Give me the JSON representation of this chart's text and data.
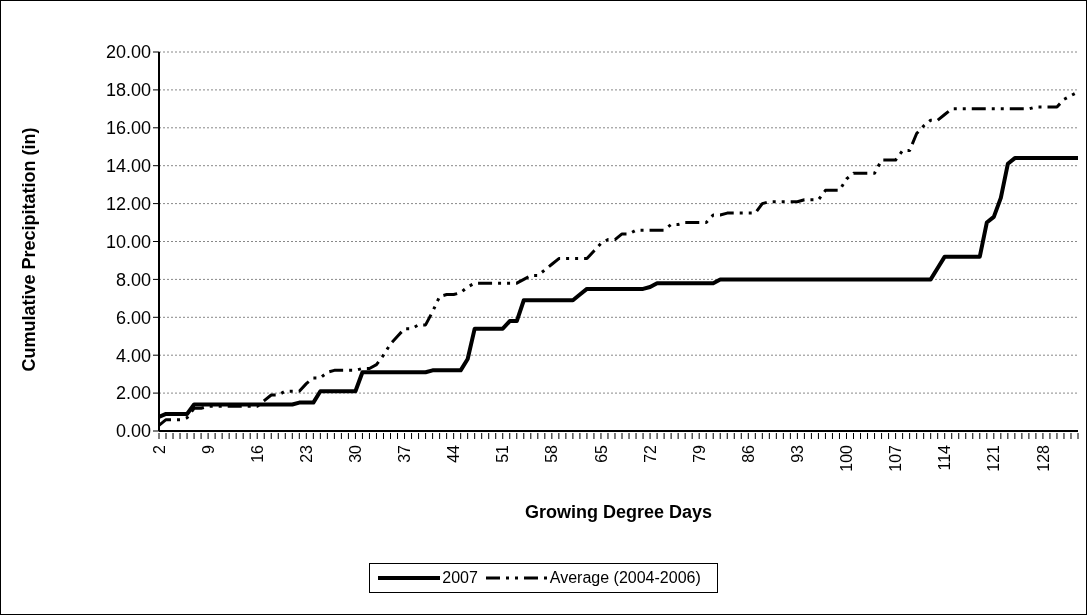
{
  "chart_data": {
    "type": "line",
    "xlabel": "Growing Degree Days",
    "ylabel": "Cumulative Precipitation (in)",
    "categories": [
      "2",
      null,
      null,
      null,
      null,
      null,
      null,
      "9",
      null,
      null,
      null,
      null,
      null,
      null,
      "16",
      null,
      null,
      null,
      null,
      null,
      null,
      "23",
      null,
      null,
      null,
      null,
      null,
      null,
      "30",
      null,
      null,
      null,
      null,
      null,
      null,
      "37",
      null,
      null,
      null,
      null,
      null,
      null,
      "44",
      null,
      null,
      null,
      null,
      null,
      null,
      "51",
      null,
      null,
      null,
      null,
      null,
      null,
      "58",
      null,
      null,
      null,
      null,
      null,
      null,
      "65",
      null,
      null,
      null,
      null,
      null,
      null,
      "72",
      null,
      null,
      null,
      null,
      null,
      null,
      "79",
      null,
      null,
      null,
      null,
      null,
      null,
      "86",
      null,
      null,
      null,
      null,
      null,
      null,
      "93",
      null,
      null,
      null,
      null,
      null,
      null,
      "100",
      null,
      null,
      null,
      null,
      null,
      null,
      "107",
      null,
      null,
      null,
      null,
      null,
      null,
      "114",
      null,
      null,
      null,
      null,
      null,
      null,
      "121",
      null,
      null,
      null,
      null,
      null,
      null,
      "128",
      null,
      null,
      null,
      null,
      null
    ],
    "series": [
      {
        "name": "2007",
        "color": "#000000",
        "line_style": "solid",
        "values": [
          0.75,
          0.9,
          0.9,
          0.9,
          0.9,
          1.4,
          1.4,
          1.4,
          1.4,
          1.4,
          1.4,
          1.4,
          1.4,
          1.4,
          1.4,
          1.4,
          1.4,
          1.4,
          1.4,
          1.4,
          1.5,
          1.5,
          1.5,
          2.1,
          2.1,
          2.1,
          2.1,
          2.1,
          2.1,
          3.1,
          3.1,
          3.1,
          3.1,
          3.1,
          3.1,
          3.1,
          3.1,
          3.1,
          3.1,
          3.2,
          3.2,
          3.2,
          3.2,
          3.2,
          3.8,
          5.4,
          5.4,
          5.4,
          5.4,
          5.4,
          5.8,
          5.8,
          6.9,
          6.9,
          6.9,
          6.9,
          6.9,
          6.9,
          6.9,
          6.9,
          7.2,
          7.5,
          7.5,
          7.5,
          7.5,
          7.5,
          7.5,
          7.5,
          7.5,
          7.5,
          7.6,
          7.8,
          7.8,
          7.8,
          7.8,
          7.8,
          7.8,
          7.8,
          7.8,
          7.8,
          8.0,
          8.0,
          8.0,
          8.0,
          8.0,
          8.0,
          8.0,
          8.0,
          8.0,
          8.0,
          8.0,
          8.0,
          8.0,
          8.0,
          8.0,
          8.0,
          8.0,
          8.0,
          8.0,
          8.0,
          8.0,
          8.0,
          8.0,
          8.0,
          8.0,
          8.0,
          8.0,
          8.0,
          8.0,
          8.0,
          8.0,
          8.6,
          9.2,
          9.2,
          9.2,
          9.2,
          9.2,
          9.2,
          11.0,
          11.3,
          12.3,
          14.1,
          14.4,
          14.4,
          14.4,
          14.4,
          14.4,
          14.4,
          14.4,
          14.4,
          14.4,
          14.4
        ]
      },
      {
        "name": "Average (2004-2006)",
        "color": "#000000",
        "line_style": "dashed",
        "values": [
          0.3,
          0.6,
          0.6,
          0.6,
          0.7,
          1.2,
          1.2,
          1.3,
          1.3,
          1.3,
          1.3,
          1.3,
          1.3,
          1.3,
          1.3,
          1.6,
          1.9,
          1.9,
          2.1,
          2.1,
          2.1,
          2.5,
          2.8,
          2.8,
          3.1,
          3.2,
          3.2,
          3.2,
          3.2,
          3.3,
          3.3,
          3.5,
          4.0,
          4.6,
          5.0,
          5.4,
          5.4,
          5.6,
          5.6,
          6.3,
          7.1,
          7.2,
          7.2,
          7.3,
          7.6,
          7.8,
          7.8,
          7.8,
          7.8,
          7.8,
          7.8,
          7.8,
          8.0,
          8.2,
          8.2,
          8.5,
          8.8,
          9.1,
          9.1,
          9.1,
          9.1,
          9.1,
          9.5,
          9.9,
          10.1,
          10.1,
          10.4,
          10.4,
          10.6,
          10.6,
          10.6,
          10.6,
          10.6,
          10.9,
          10.9,
          11.0,
          11.0,
          11.0,
          11.0,
          11.4,
          11.4,
          11.5,
          11.5,
          11.5,
          11.5,
          11.5,
          12.0,
          12.1,
          12.1,
          12.1,
          12.1,
          12.1,
          12.2,
          12.2,
          12.2,
          12.7,
          12.7,
          12.7,
          13.3,
          13.6,
          13.6,
          13.6,
          13.6,
          14.3,
          14.3,
          14.3,
          14.8,
          14.8,
          15.7,
          16.1,
          16.4,
          16.4,
          16.7,
          17.0,
          17.0,
          17.0,
          17.0,
          17.0,
          17.0,
          17.0,
          17.0,
          17.0,
          17.0,
          17.0,
          17.0,
          17.1,
          17.1,
          17.1,
          17.1,
          17.5,
          17.7,
          17.9
        ]
      }
    ],
    "ylim": [
      0,
      20
    ],
    "yticks": [
      {
        "value": 0,
        "label": "0.00"
      },
      {
        "value": 2,
        "label": "2.00"
      },
      {
        "value": 4,
        "label": "4.00"
      },
      {
        "value": 6,
        "label": "6.00"
      },
      {
        "value": 8,
        "label": "8.00"
      },
      {
        "value": 10,
        "label": "10.00"
      },
      {
        "value": 12,
        "label": "12.00"
      },
      {
        "value": 14,
        "label": "14.00"
      },
      {
        "value": 16,
        "label": "16.00"
      },
      {
        "value": 18,
        "label": "18.00"
      },
      {
        "value": 20,
        "label": "20.00"
      }
    ],
    "grid": "y",
    "legend": "bottom",
    "marker": "none"
  }
}
